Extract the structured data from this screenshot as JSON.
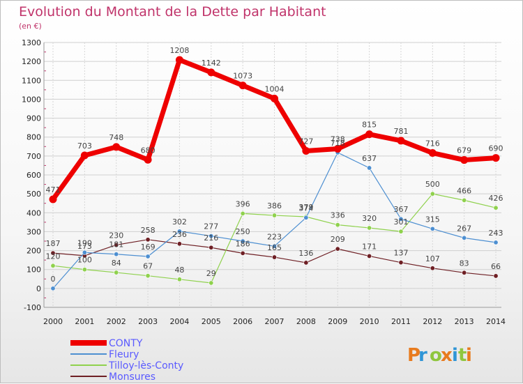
{
  "chart_data": {
    "type": "line",
    "title": "Evolution du Montant de la Dette par Habitant",
    "subtitle": "(en €)",
    "x": [
      "2000",
      "2001",
      "2002",
      "2003",
      "2004",
      "2005",
      "2006",
      "2007",
      "2008",
      "2009",
      "2010",
      "2011",
      "2012",
      "2013",
      "2014"
    ],
    "ylim": [
      -100,
      1300
    ],
    "yticks": [
      -100,
      0,
      100,
      200,
      300,
      400,
      500,
      600,
      700,
      800,
      900,
      1000,
      1100,
      1200,
      1300
    ],
    "grid": true,
    "legend_position": "bottom-left",
    "series": [
      {
        "name": "CONTY",
        "color": "#ee0000",
        "values": [
          471,
          703,
          748,
          680,
          1208,
          1142,
          1073,
          1004,
          727,
          738,
          815,
          781,
          716,
          679,
          690
        ]
      },
      {
        "name": "Fleury",
        "color": "#4d8fd1",
        "values": [
          0,
          190,
          181,
          169,
          302,
          277,
          250,
          223,
          374,
          718,
          637,
          367,
          315,
          267,
          243
        ]
      },
      {
        "name": "Tilloy-lès-Conty",
        "color": "#8fd14d",
        "values": [
          120,
          100,
          84,
          67,
          48,
          29,
          396,
          386,
          379,
          336,
          320,
          301,
          500,
          466,
          426
        ]
      },
      {
        "name": "Monsures",
        "color": "#6e1f24",
        "values": [
          187,
          173,
          230,
          258,
          236,
          216,
          186,
          165,
          136,
          209,
          171,
          137,
          107,
          83,
          66
        ]
      }
    ]
  },
  "logo": {
    "text": "Proxiti",
    "colors": [
      "#e87b1e",
      "#2f95d6",
      "#8fc63e"
    ]
  }
}
